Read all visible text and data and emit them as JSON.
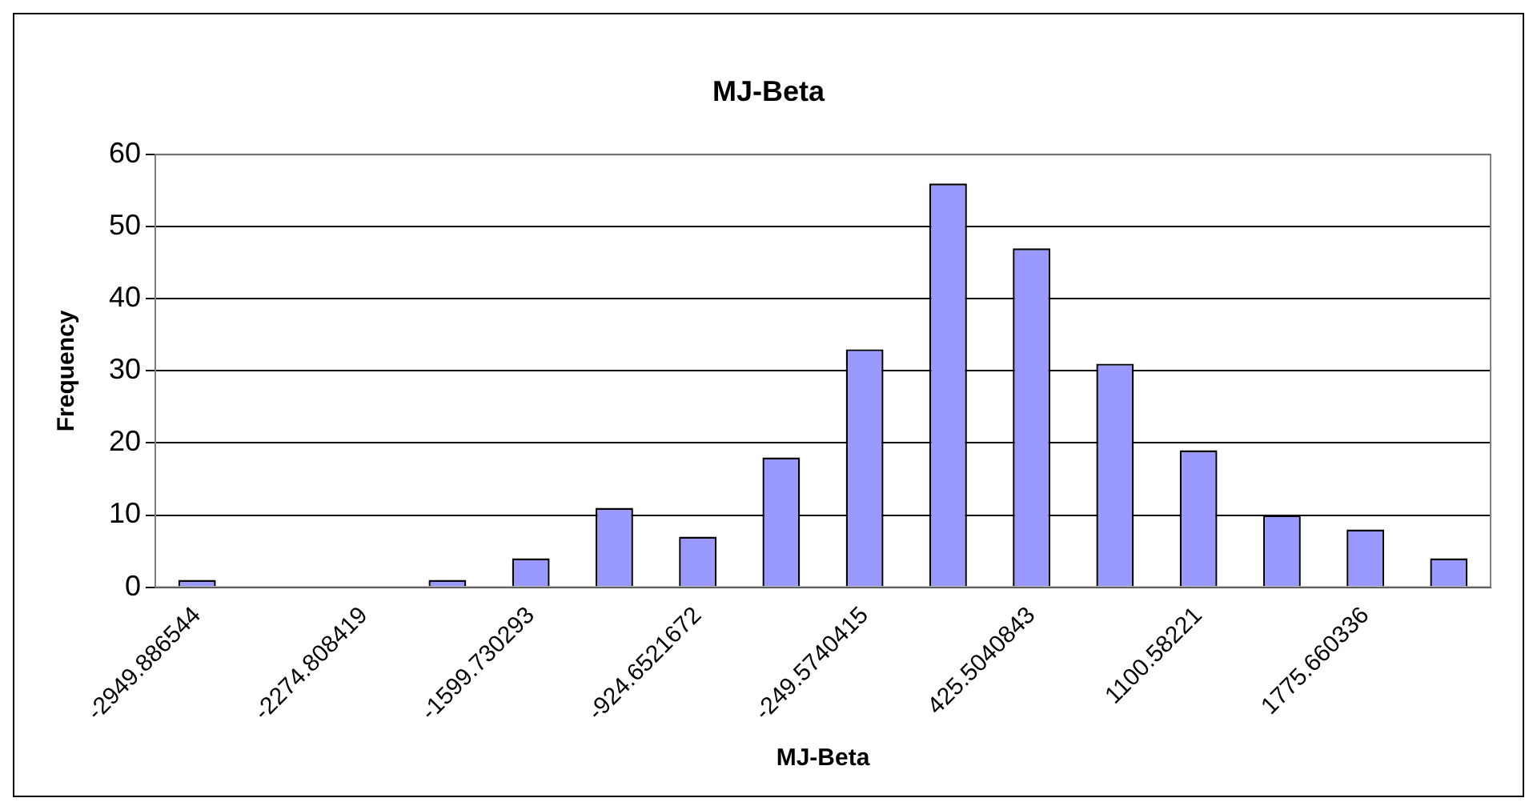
{
  "chart_data": {
    "type": "bar",
    "title": "MJ-Beta",
    "xlabel": "MJ-Beta",
    "ylabel": "Frequency",
    "categories": [
      "-2949.886544",
      null,
      "-2274.808419",
      null,
      "-1599.730293",
      null,
      "-924.6521672",
      null,
      "-249.5740415",
      null,
      "425.5040843",
      null,
      "1100.58221",
      null,
      "1775.660336",
      null
    ],
    "values": [
      1,
      0,
      0,
      1,
      4,
      11,
      7,
      18,
      33,
      56,
      47,
      31,
      19,
      10,
      8,
      4
    ],
    "color": "#9999ff",
    "ylim": [
      0,
      60
    ],
    "yticks": [
      0,
      10,
      20,
      30,
      40,
      50,
      60
    ],
    "grid": "y",
    "legend": false
  }
}
